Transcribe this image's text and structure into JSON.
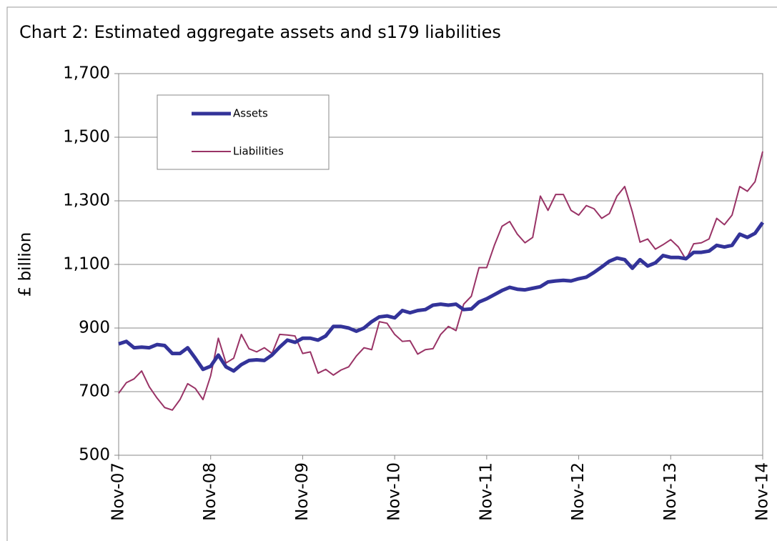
{
  "chart_data": {
    "type": "line",
    "title": "Chart 2: Estimated aggregate assets and s179 liabilities",
    "y_label": "£ billion",
    "categories": [
      "Nov-07",
      null,
      null,
      null,
      null,
      null,
      null,
      null,
      null,
      null,
      null,
      null,
      "Nov-08",
      null,
      null,
      null,
      null,
      null,
      null,
      null,
      null,
      null,
      null,
      null,
      "Nov-09",
      null,
      null,
      null,
      null,
      null,
      null,
      null,
      null,
      null,
      null,
      null,
      "Nov-10",
      null,
      null,
      null,
      null,
      null,
      null,
      null,
      null,
      null,
      null,
      null,
      "Nov-11",
      null,
      null,
      null,
      null,
      null,
      null,
      null,
      null,
      null,
      null,
      null,
      "Nov-12",
      null,
      null,
      null,
      null,
      null,
      null,
      null,
      null,
      null,
      null,
      null,
      "Nov-13",
      null,
      null,
      null,
      null,
      null,
      null,
      null,
      null,
      null,
      null,
      null,
      "Nov-14"
    ],
    "series": [
      {
        "name": "Assets",
        "color": "#333399",
        "values": [
          850,
          858,
          838,
          840,
          838,
          848,
          845,
          820,
          820,
          838,
          805,
          770,
          780,
          815,
          778,
          765,
          785,
          798,
          800,
          798,
          815,
          840,
          862,
          855,
          868,
          868,
          862,
          875,
          905,
          905,
          900,
          890,
          900,
          920,
          935,
          938,
          932,
          955,
          948,
          955,
          958,
          972,
          975,
          972,
          975,
          958,
          960,
          982,
          992,
          1005,
          1018,
          1028,
          1022,
          1020,
          1025,
          1030,
          1045,
          1048,
          1050,
          1048,
          1055,
          1060,
          1075,
          1092,
          1110,
          1120,
          1115,
          1088,
          1115,
          1095,
          1105,
          1128,
          1122,
          1122,
          1118,
          1138,
          1138,
          1142,
          1160,
          1155,
          1160,
          1195,
          1185,
          1198,
          1232
        ]
      },
      {
        "name": "Liabilities",
        "color": "#993366",
        "values": [
          695,
          728,
          740,
          765,
          715,
          680,
          650,
          642,
          675,
          725,
          710,
          675,
          750,
          868,
          790,
          805,
          880,
          835,
          825,
          838,
          820,
          880,
          878,
          875,
          820,
          825,
          758,
          770,
          752,
          768,
          778,
          812,
          838,
          832,
          920,
          915,
          880,
          858,
          860,
          818,
          832,
          835,
          880,
          905,
          892,
          975,
          1000,
          1090,
          1090,
          1160,
          1220,
          1235,
          1195,
          1168,
          1185,
          1315,
          1270,
          1320,
          1320,
          1270,
          1255,
          1285,
          1275,
          1245,
          1260,
          1315,
          1345,
          1265,
          1170,
          1180,
          1148,
          1162,
          1178,
          1155,
          1115,
          1165,
          1168,
          1180,
          1245,
          1225,
          1255,
          1345,
          1330,
          1360,
          1455
        ]
      }
    ],
    "ylim": [
      500,
      1700
    ],
    "yticks": [
      500,
      700,
      900,
      {
        "value": 1100,
        "label": "1,100"
      },
      {
        "value": 1300,
        "label": "1,300"
      },
      {
        "value": 1500,
        "label": "1,500"
      },
      {
        "value": 1700,
        "label": "1,700"
      }
    ],
    "grid": true
  }
}
